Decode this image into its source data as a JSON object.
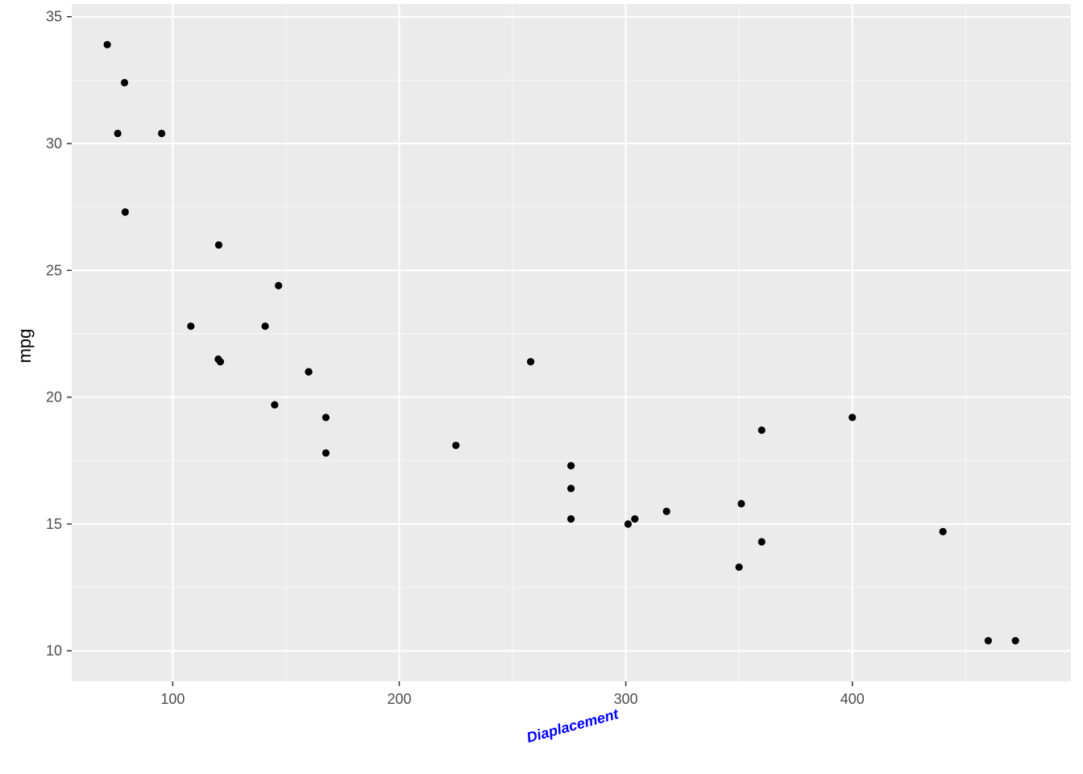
{
  "chart_data": {
    "type": "scatter",
    "xlabel": "Diaplacement",
    "ylabel": "mpg",
    "xlim": [
      55.4,
      496.5
    ],
    "ylim": [
      8.8,
      35.5
    ],
    "x_ticks": [
      100,
      200,
      300,
      400
    ],
    "y_ticks": [
      10,
      15,
      20,
      25,
      30,
      35
    ],
    "x_tick_labels": [
      "100",
      "200",
      "300",
      "400"
    ],
    "y_tick_labels": [
      "10",
      "15",
      "20",
      "25",
      "30",
      "35"
    ],
    "grid": true,
    "colors": {
      "panel_bg": "#ebebeb",
      "grid_major": "#ffffff",
      "point": "#000000",
      "xlabel": "#0000ff"
    },
    "points": [
      {
        "x": 160,
        "y": 21.0
      },
      {
        "x": 160,
        "y": 21.0
      },
      {
        "x": 108,
        "y": 22.8
      },
      {
        "x": 258,
        "y": 21.4
      },
      {
        "x": 360,
        "y": 18.7
      },
      {
        "x": 225,
        "y": 18.1
      },
      {
        "x": 360,
        "y": 14.3
      },
      {
        "x": 146.7,
        "y": 24.4
      },
      {
        "x": 140.8,
        "y": 22.8
      },
      {
        "x": 167.6,
        "y": 19.2
      },
      {
        "x": 167.6,
        "y": 17.8
      },
      {
        "x": 275.8,
        "y": 16.4
      },
      {
        "x": 275.8,
        "y": 17.3
      },
      {
        "x": 275.8,
        "y": 15.2
      },
      {
        "x": 472,
        "y": 10.4
      },
      {
        "x": 460,
        "y": 10.4
      },
      {
        "x": 440,
        "y": 14.7
      },
      {
        "x": 78.7,
        "y": 32.4
      },
      {
        "x": 75.7,
        "y": 30.4
      },
      {
        "x": 71.1,
        "y": 33.9
      },
      {
        "x": 120.1,
        "y": 21.5
      },
      {
        "x": 318,
        "y": 15.5
      },
      {
        "x": 304,
        "y": 15.2
      },
      {
        "x": 350,
        "y": 13.3
      },
      {
        "x": 400,
        "y": 19.2
      },
      {
        "x": 79,
        "y": 27.3
      },
      {
        "x": 120.3,
        "y": 26.0
      },
      {
        "x": 95.1,
        "y": 30.4
      },
      {
        "x": 351,
        "y": 15.8
      },
      {
        "x": 145,
        "y": 19.7
      },
      {
        "x": 301,
        "y": 15.0
      },
      {
        "x": 121,
        "y": 21.4
      }
    ]
  }
}
